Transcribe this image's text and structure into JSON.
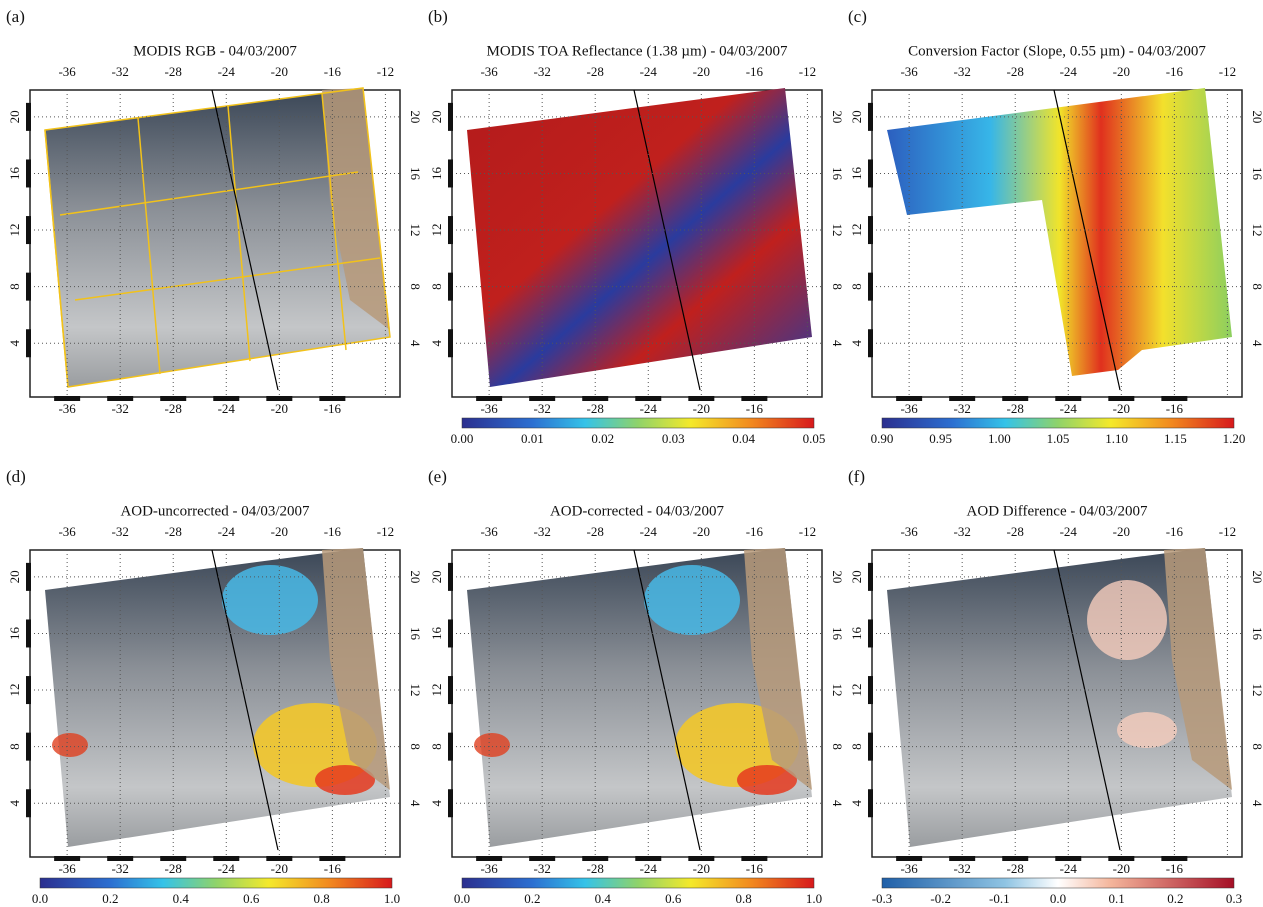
{
  "map": {
    "xlim": [
      -38.8,
      -10.9
    ],
    "ylim": [
      0.2,
      21.9
    ],
    "lon_ticks_top": [
      -36,
      -32,
      -28,
      -24,
      -20,
      -16,
      -12
    ],
    "lon_ticks_bottom": [
      -36,
      -32,
      -28,
      -24,
      -20,
      -16
    ],
    "lat_ticks": [
      20,
      16,
      12,
      8,
      4
    ]
  },
  "panels": [
    {
      "label": "(a)",
      "title": "MODIS RGB - 04/03/2007",
      "style": "rgb"
    },
    {
      "label": "(b)",
      "title": "MODIS TOA Reflectance (1.38 µm) - 04/03/2007",
      "style": "reflectance",
      "colormap": "jet",
      "colorbar_ticks": [
        "0.00",
        "0.01",
        "0.02",
        "0.03",
        "0.04",
        "0.05"
      ]
    },
    {
      "label": "(c)",
      "title": "Conversion Factor (Slope, 0.55 µm) - 04/03/2007",
      "style": "slope",
      "colormap": "jet",
      "colorbar_ticks": [
        "0.90",
        "0.95",
        "1.00",
        "1.05",
        "1.10",
        "1.15",
        "1.20"
      ]
    },
    {
      "label": "(d)",
      "title": "AOD-uncorrected - 04/03/2007",
      "style": "aod",
      "colormap": "jet",
      "colorbar_ticks": [
        "0.0",
        "0.2",
        "0.4",
        "0.6",
        "0.8",
        "1.0"
      ]
    },
    {
      "label": "(e)",
      "title": "AOD-corrected - 04/03/2007",
      "style": "aod",
      "colormap": "jet",
      "colorbar_ticks": [
        "0.0",
        "0.2",
        "0.4",
        "0.6",
        "0.8",
        "1.0"
      ]
    },
    {
      "label": "(f)",
      "title": "AOD Difference - 04/03/2007",
      "style": "diff",
      "colormap": "diverging",
      "colorbar_ticks": [
        "-0.3",
        "-0.2",
        "-0.1",
        "0.0",
        "0.1",
        "0.2",
        "0.3"
      ]
    }
  ]
}
